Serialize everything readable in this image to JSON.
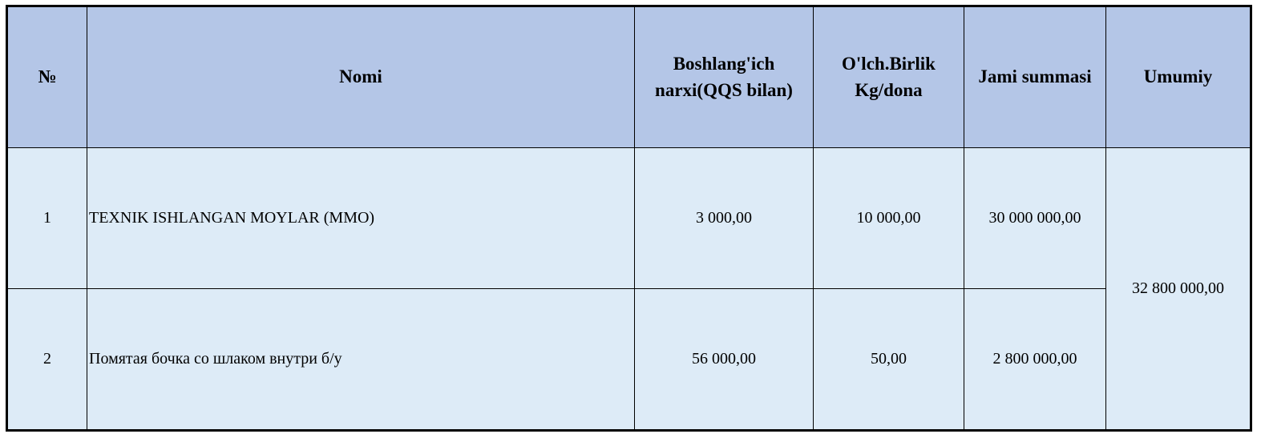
{
  "table": {
    "headers": [
      "№",
      "Nomi",
      "Boshlang'ich narxi(QQS bilan)",
      "O'lch.Birlik Kg/dona",
      "Jami summasi",
      "Umumiy"
    ],
    "rows": [
      {
        "num": "1",
        "name": "TEXNIK ISHLANGAN MOYLAR (MMO)",
        "price": "3 000,00",
        "unit": "10 000,00",
        "total": "30 000 000,00"
      },
      {
        "num": "2",
        "name": "Помятая бочка со шлаком внутри б/у",
        "price": "56 000,00",
        "unit": "50,00",
        "total": "2 800 000,00"
      }
    ],
    "grand_total": "32 800 000,00"
  },
  "colors": {
    "header_bg": "#b4c6e7",
    "body_bg": "#ddebf7"
  }
}
